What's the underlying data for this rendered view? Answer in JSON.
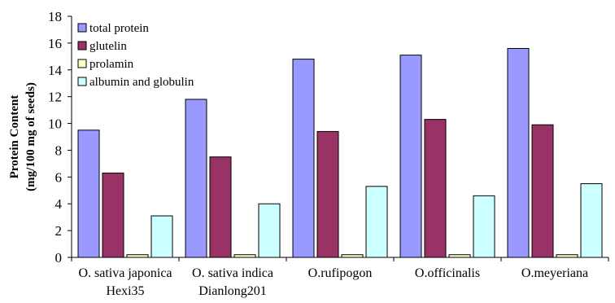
{
  "chart_data": {
    "type": "bar",
    "categories": [
      [
        "O. sativa japonica",
        "Hexi35"
      ],
      [
        "O. sativa indica",
        "Dianlong201"
      ],
      [
        "O.rufipogon"
      ],
      [
        "O.officinalis"
      ],
      [
        "O.meyeriana"
      ]
    ],
    "series": [
      {
        "name": "total protein",
        "color": "#9999ff",
        "values": [
          9.5,
          11.8,
          14.8,
          15.1,
          15.6
        ]
      },
      {
        "name": "glutelin",
        "color": "#993366",
        "values": [
          6.3,
          7.5,
          9.4,
          10.3,
          9.9
        ]
      },
      {
        "name": "prolamin",
        "color": "#ffffcc",
        "values": [
          0.2,
          0.2,
          0.2,
          0.2,
          0.2
        ]
      },
      {
        "name": "albumin and globulin",
        "color": "#ccffff",
        "values": [
          3.1,
          4.0,
          5.3,
          4.6,
          5.5
        ]
      }
    ],
    "ylabel": [
      "Protein Content",
      "(mg/100 mg of seeds)"
    ],
    "ylim": [
      0,
      18
    ],
    "yticks": [
      0,
      2,
      4,
      6,
      8,
      10,
      12,
      14,
      16,
      18
    ],
    "grid": false,
    "legend_position": "top-left"
  }
}
